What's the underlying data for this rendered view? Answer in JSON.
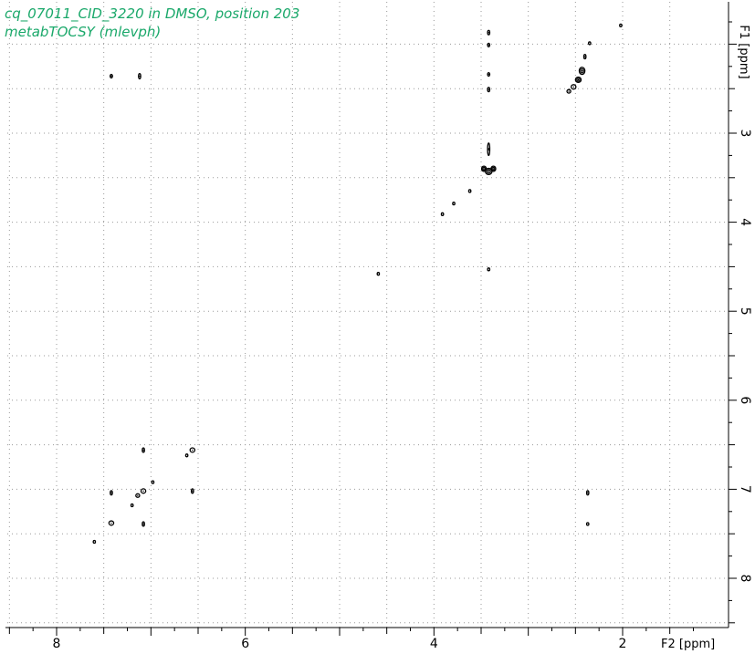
{
  "colors": {
    "title": "#1aa86a",
    "contour": "#000000",
    "grid": "#9a9a9a",
    "axis": "#000000"
  },
  "chart_data": {
    "type": "scatter",
    "title": "cq_07011_CID_3220 in DMSO, position 203",
    "subtitle": "metabTOCSY (mlevph)",
    "xlabel": "F2 [ppm]",
    "ylabel": "F1 [ppm]",
    "xlim": [
      8.55,
      1.2
    ],
    "ylim": [
      1.6,
      8.7
    ],
    "xticks": [
      8,
      6,
      4,
      2
    ],
    "yticks": [
      3,
      4,
      5,
      6,
      7,
      8
    ],
    "grid": true,
    "series": [
      {
        "points": [
          {
            "x": 7.42,
            "y": 2.36,
            "w": 0.025,
            "h": 0.04
          },
          {
            "x": 7.12,
            "y": 2.36,
            "w": 0.02,
            "h": 0.06
          },
          {
            "x": 2.02,
            "y": 1.79,
            "w": 0.01,
            "h": 0.03
          },
          {
            "x": 2.35,
            "y": 1.99,
            "w": 0.015,
            "h": 0.03
          },
          {
            "x": 2.4,
            "y": 2.14,
            "w": 0.02,
            "h": 0.05
          },
          {
            "x": 2.43,
            "y": 2.3,
            "w": 0.06,
            "h": 0.08
          },
          {
            "x": 2.47,
            "y": 2.4,
            "w": 0.06,
            "h": 0.06
          },
          {
            "x": 2.52,
            "y": 2.48,
            "w": 0.05,
            "h": 0.05
          },
          {
            "x": 2.57,
            "y": 2.53,
            "w": 0.04,
            "h": 0.04
          },
          {
            "x": 3.42,
            "y": 1.87,
            "w": 0.006,
            "h": 0.05
          },
          {
            "x": 3.42,
            "y": 2.01,
            "w": 0.006,
            "h": 0.04
          },
          {
            "x": 3.42,
            "y": 2.34,
            "w": 0.006,
            "h": 0.04
          },
          {
            "x": 3.42,
            "y": 2.51,
            "w": 0.006,
            "h": 0.05
          },
          {
            "x": 3.42,
            "y": 3.18,
            "w": 0.015,
            "h": 0.14
          },
          {
            "x": 3.42,
            "y": 3.43,
            "w": 0.07,
            "h": 0.07
          },
          {
            "x": 3.37,
            "y": 3.4,
            "w": 0.05,
            "h": 0.06
          },
          {
            "x": 3.47,
            "y": 3.4,
            "w": 0.05,
            "h": 0.06
          },
          {
            "x": 3.62,
            "y": 3.65,
            "w": 0.012,
            "h": 0.02
          },
          {
            "x": 3.79,
            "y": 3.79,
            "w": 0.015,
            "h": 0.03
          },
          {
            "x": 3.91,
            "y": 3.91,
            "w": 0.01,
            "h": 0.03
          },
          {
            "x": 4.59,
            "y": 4.58,
            "w": 0.012,
            "h": 0.03
          },
          {
            "x": 3.42,
            "y": 4.53,
            "w": 0.008,
            "h": 0.025
          },
          {
            "x": 7.08,
            "y": 6.56,
            "w": 0.02,
            "h": 0.05
          },
          {
            "x": 6.56,
            "y": 6.56,
            "w": 0.05,
            "h": 0.05
          },
          {
            "x": 6.62,
            "y": 6.62,
            "w": 0.012,
            "h": 0.02
          },
          {
            "x": 6.98,
            "y": 6.92,
            "w": 0.01,
            "h": 0.02
          },
          {
            "x": 7.42,
            "y": 7.04,
            "w": 0.02,
            "h": 0.05
          },
          {
            "x": 7.08,
            "y": 7.02,
            "w": 0.05,
            "h": 0.05
          },
          {
            "x": 7.14,
            "y": 7.07,
            "w": 0.04,
            "h": 0.04
          },
          {
            "x": 7.2,
            "y": 7.18,
            "w": 0.012,
            "h": 0.02
          },
          {
            "x": 6.56,
            "y": 7.02,
            "w": 0.02,
            "h": 0.05
          },
          {
            "x": 2.37,
            "y": 7.04,
            "w": 0.02,
            "h": 0.05
          },
          {
            "x": 7.42,
            "y": 7.38,
            "w": 0.05,
            "h": 0.05
          },
          {
            "x": 7.08,
            "y": 7.39,
            "w": 0.02,
            "h": 0.05
          },
          {
            "x": 2.37,
            "y": 7.39,
            "w": 0.015,
            "h": 0.03
          },
          {
            "x": 7.6,
            "y": 7.59,
            "w": 0.01,
            "h": 0.02
          }
        ]
      }
    ]
  }
}
